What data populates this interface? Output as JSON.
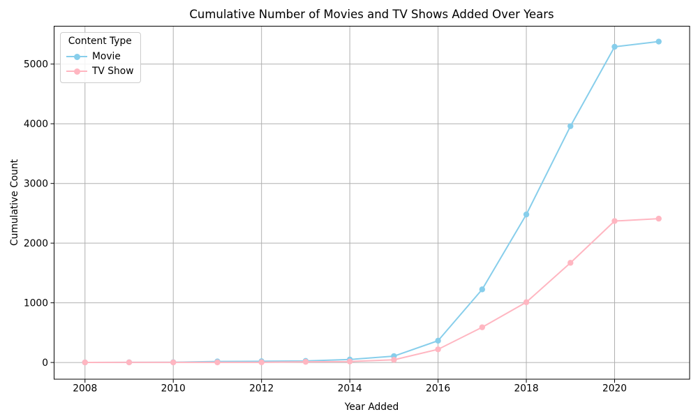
{
  "page": {
    "background": "#ffffff"
  },
  "chart_data": {
    "type": "line",
    "title": "Cumulative Number of Movies and TV Shows Added Over Years",
    "xlabel": "Year Added",
    "ylabel": "Cumulative Count",
    "x": [
      2008,
      2009,
      2010,
      2011,
      2012,
      2013,
      2014,
      2015,
      2016,
      2017,
      2018,
      2019,
      2020,
      2021
    ],
    "series": [
      {
        "name": "Movie",
        "color": "#87CEEB",
        "values": [
          1,
          3,
          4,
          17,
          20,
          26,
          50,
          106,
          365,
          1225,
          2480,
          3960,
          5290,
          5377
        ]
      },
      {
        "name": "TV Show",
        "color": "#FFB6C1",
        "values": [
          1,
          2,
          2,
          2,
          3,
          11,
          16,
          45,
          220,
          590,
          1010,
          1670,
          2370,
          2410
        ]
      }
    ],
    "legend": {
      "title": "Content Type",
      "position": "upper left"
    },
    "xlim": [
      2007.3,
      2021.7
    ],
    "ylim": [
      -280,
      5635
    ],
    "xticks": [
      2008,
      2010,
      2012,
      2014,
      2016,
      2018,
      2020
    ],
    "yticks": [
      0,
      1000,
      2000,
      3000,
      4000,
      5000
    ],
    "grid": true,
    "grid_color": "#b0b0b0",
    "spine_color": "#000000",
    "text_color": "#000000",
    "marker": "circle",
    "line_width": 2,
    "marker_radius": 4.2
  }
}
